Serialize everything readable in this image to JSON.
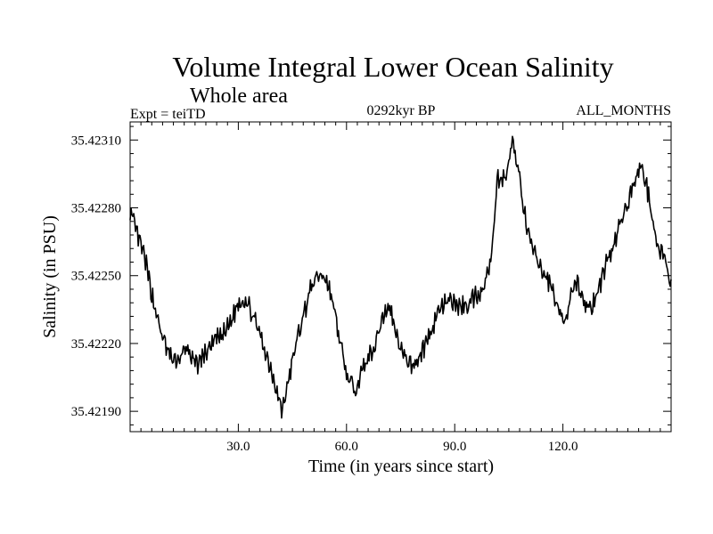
{
  "chart_data": {
    "type": "line",
    "title": "Volume Integral Lower Ocean Salinity",
    "subtitle": "Whole area",
    "annotations": {
      "left": "Expt = teiTD",
      "center": "0292kyr BP",
      "right": "ALL_MONTHS"
    },
    "xlabel": "Time (in years since start)",
    "ylabel": "Salinity (in PSU)",
    "xlim": [
      0,
      150
    ],
    "ylim": [
      35.42181,
      35.42318
    ],
    "x_ticks": [
      30,
      60,
      90,
      120
    ],
    "x_tick_labels": [
      "30.0",
      "60.0",
      "90.0",
      "120.0"
    ],
    "y_ticks": [
      35.4219,
      35.4222,
      35.4225,
      35.4228,
      35.4231
    ],
    "y_tick_labels": [
      "35.42190",
      "35.42220",
      "35.42250",
      "35.42280",
      "35.42310"
    ],
    "grid": false,
    "series": [
      {
        "name": "salinity",
        "x": [
          0,
          2,
          4,
          6,
          8,
          10,
          12,
          14,
          16,
          18,
          20,
          22,
          24,
          26,
          28,
          30,
          32,
          34,
          36,
          38,
          40,
          42,
          44,
          46,
          48,
          50,
          52,
          54,
          56,
          58,
          60,
          62,
          64,
          66,
          68,
          70,
          72,
          74,
          76,
          78,
          80,
          82,
          84,
          86,
          88,
          90,
          92,
          94,
          96,
          98,
          100,
          102,
          104,
          106,
          108,
          110,
          112,
          114,
          116,
          118,
          120,
          122,
          124,
          126,
          128,
          130,
          132,
          134,
          136,
          138,
          140,
          142,
          144,
          146,
          148,
          150
        ],
        "values": [
          35.42278,
          35.42268,
          35.42258,
          35.42242,
          35.42228,
          35.42218,
          35.42212,
          35.42214,
          35.42218,
          35.4221,
          35.42214,
          35.42218,
          35.42222,
          35.42224,
          35.4223,
          35.42238,
          35.4224,
          35.42232,
          35.42224,
          35.42214,
          35.42204,
          35.4219,
          35.42204,
          35.4222,
          35.42232,
          35.42244,
          35.4225,
          35.4225,
          35.4224,
          35.42222,
          35.42206,
          35.422,
          35.42206,
          35.42214,
          35.4222,
          35.42232,
          35.42236,
          35.42224,
          35.42214,
          35.4221,
          35.42214,
          35.4222,
          35.42228,
          35.42236,
          35.42238,
          35.42238,
          35.42236,
          35.42238,
          35.42242,
          35.42244,
          35.42258,
          35.42294,
          35.42292,
          35.42308,
          35.42294,
          35.4227,
          35.4226,
          35.42252,
          35.42248,
          35.4224,
          35.42228,
          35.4224,
          35.42246,
          35.42238,
          35.42236,
          35.42244,
          35.42256,
          35.42262,
          35.42274,
          35.42282,
          35.42294,
          35.42298,
          35.42284,
          35.42264,
          35.42258,
          35.42246
        ]
      }
    ]
  }
}
